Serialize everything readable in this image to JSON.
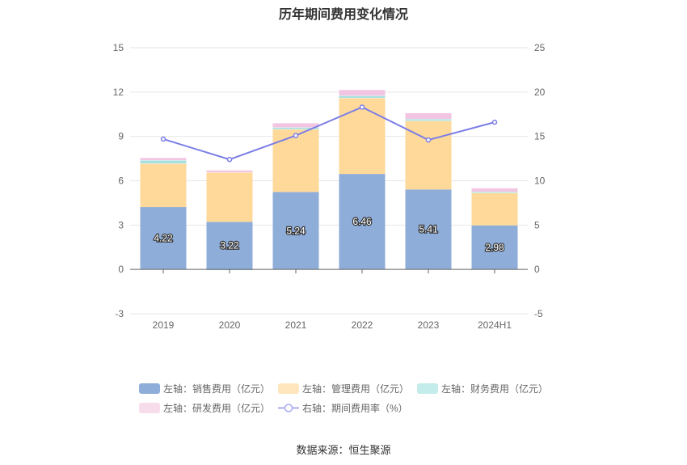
{
  "title": "历年期间费用变化情况",
  "source": "数据来源：恒生聚源",
  "chart_data": {
    "type": "bar",
    "stacked": true,
    "categories": [
      "2019",
      "2020",
      "2021",
      "2022",
      "2023",
      "2024H1"
    ],
    "left_axis": {
      "min": -3,
      "max": 15,
      "ticks": [
        -3,
        0,
        3,
        6,
        9,
        12,
        15
      ]
    },
    "right_axis": {
      "min": -5,
      "max": 25,
      "ticks": [
        -5,
        0,
        5,
        10,
        15,
        20,
        25
      ]
    },
    "series": [
      {
        "name": "左轴：销售费用（亿元）",
        "axis": "left",
        "type": "bar",
        "color": "#8eadd9",
        "labels": [
          "4.22",
          "3.22",
          "5.24",
          "6.46",
          "5.41",
          "2.98"
        ],
        "values": [
          4.22,
          3.22,
          5.24,
          6.46,
          5.41,
          2.98
        ]
      },
      {
        "name": "左轴：管理费用（亿元）",
        "axis": "left",
        "type": "bar",
        "color": "#fed99a",
        "values": [
          2.95,
          3.35,
          4.25,
          5.15,
          4.65,
          2.2
        ]
      },
      {
        "name": "左轴：财务费用（亿元）",
        "axis": "left",
        "type": "bar",
        "color": "#a8e0df",
        "values": [
          0.22,
          -0.05,
          0.12,
          0.15,
          0.12,
          0.08
        ]
      },
      {
        "name": "左轴：研发费用（亿元）",
        "axis": "left",
        "type": "bar",
        "color": "#f2c6e2",
        "values": [
          0.18,
          0.15,
          0.3,
          0.4,
          0.42,
          0.25
        ]
      },
      {
        "name": "右轴：期间费用率（%）",
        "axis": "right",
        "type": "line",
        "color": "#7b7ee6",
        "values": [
          14.7,
          12.4,
          15.1,
          18.3,
          14.6,
          16.6
        ]
      }
    ],
    "grid": true,
    "legend_position": "bottom"
  }
}
